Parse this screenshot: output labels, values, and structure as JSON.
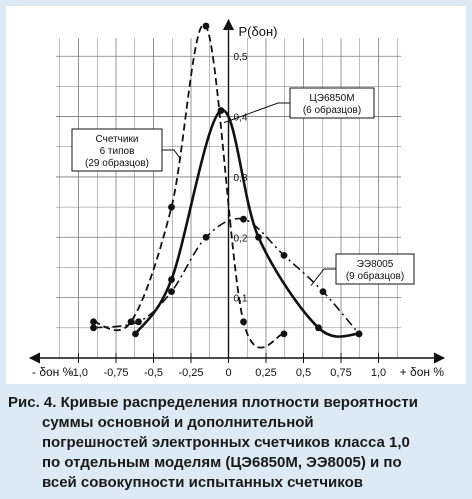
{
  "chart_data": {
    "type": "line",
    "ylabel": "P(δон)",
    "xlabel_left": "- δон %",
    "xlabel_right": "+ δон %",
    "xlim": [
      -1.35,
      1.45
    ],
    "ylim": [
      0,
      0.56
    ],
    "x_ticks": [
      "-1,0",
      "-0,75",
      "-0,5",
      "-0,25",
      "0",
      "0,25",
      "0,5",
      "0,75",
      "1,0"
    ],
    "x_tick_values": [
      -1.0,
      -0.75,
      -0.5,
      -0.25,
      0,
      0.25,
      0.5,
      0.75,
      1.0
    ],
    "y_ticks": [
      "0,1",
      "0,2",
      "0,3",
      "0,4",
      "0,5"
    ],
    "y_tick_values": [
      0.1,
      0.2,
      0.3,
      0.4,
      0.5
    ],
    "grid": true,
    "series": [
      {
        "name": "Счетчики 6 типов (29 образцов)",
        "style": "dashed",
        "x": [
          -0.9,
          -0.65,
          -0.38,
          -0.15,
          0.1,
          0.37
        ],
        "y": [
          0.06,
          0.06,
          0.25,
          0.55,
          0.06,
          0.04
        ]
      },
      {
        "name": "ЦЭ6850М (6 образцов)",
        "style": "solid",
        "x": [
          -0.62,
          -0.38,
          -0.05,
          0.2,
          0.6,
          0.87
        ],
        "y": [
          0.04,
          0.13,
          0.41,
          0.2,
          0.05,
          0.04
        ]
      },
      {
        "name": "ЭЭ8005 (9 образцов)",
        "style": "dashdot",
        "x": [
          -0.9,
          -0.6,
          -0.38,
          -0.15,
          0.1,
          0.37,
          0.63,
          0.87
        ],
        "y": [
          0.05,
          0.06,
          0.11,
          0.2,
          0.23,
          0.17,
          0.11,
          0.04
        ]
      }
    ],
    "annotations": [
      {
        "series": 0,
        "lines": [
          "Счетчики",
          "6 типов",
          "(29 образцов)"
        ]
      },
      {
        "series": 1,
        "lines": [
          "ЦЭ6850М",
          "(6 образцов)"
        ]
      },
      {
        "series": 2,
        "lines": [
          "ЭЭ8005",
          "(9 образцов)"
        ]
      }
    ]
  },
  "caption": {
    "lines": [
      "Рис. 4. Кривые распределения плотности вероятности",
      "суммы основной и дополнительной",
      "погрешностей электронных счетчиков класса 1,0",
      "по отдельным моделям (ЦЭ6850М, ЭЭ8005) и по",
      "всей совокупности испытанных счетчиков"
    ]
  },
  "colors": {
    "background": "#dceaf6",
    "plot_background": "#ffffff",
    "grid": "#7a7a7a",
    "ink": "#111111"
  }
}
